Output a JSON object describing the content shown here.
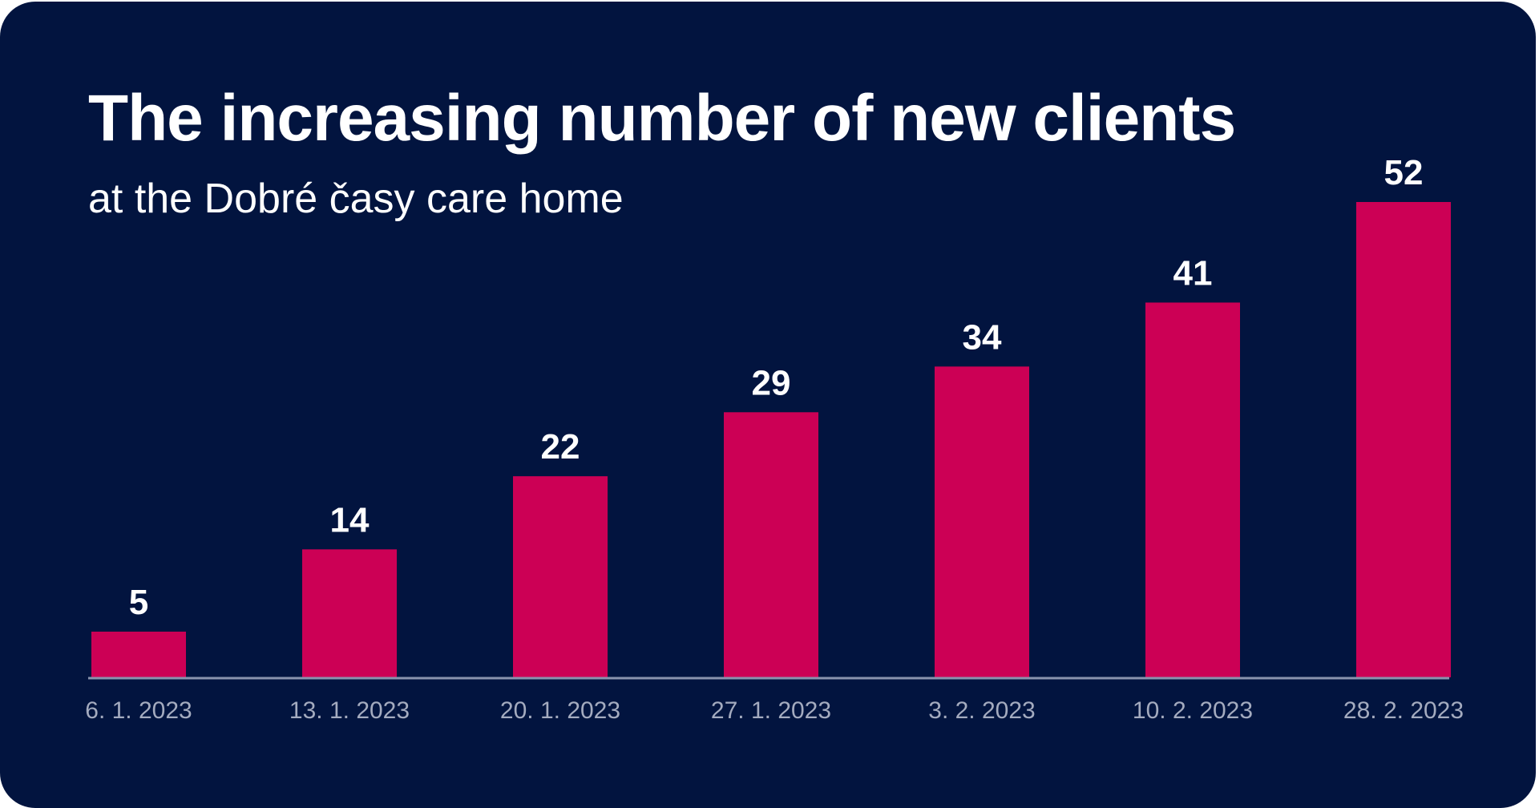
{
  "header": {
    "title": "The increasing number of new clients",
    "subtitle": "at the Dobré časy care home"
  },
  "colors": {
    "background": "#02143f",
    "bar": "#cc0055",
    "axis": "#8a93ad",
    "tick_label": "#a4abbf",
    "value_label": "#ffffff"
  },
  "chart_data": {
    "type": "bar",
    "title": "The increasing number of new clients",
    "subtitle": "at the Dobré časy care home",
    "categories": [
      "6. 1. 2023",
      "13. 1. 2023",
      "20. 1. 2023",
      "27. 1. 2023",
      "3. 2. 2023",
      "10. 2. 2023",
      "28. 2. 2023"
    ],
    "values": [
      5,
      14,
      22,
      29,
      34,
      41,
      52
    ],
    "data_labels": [
      "5",
      "14",
      "22",
      "29",
      "34",
      "41",
      "52"
    ],
    "xlabel": "",
    "ylabel": "",
    "ylim": [
      0,
      52
    ],
    "grid": false,
    "legend": "none"
  }
}
